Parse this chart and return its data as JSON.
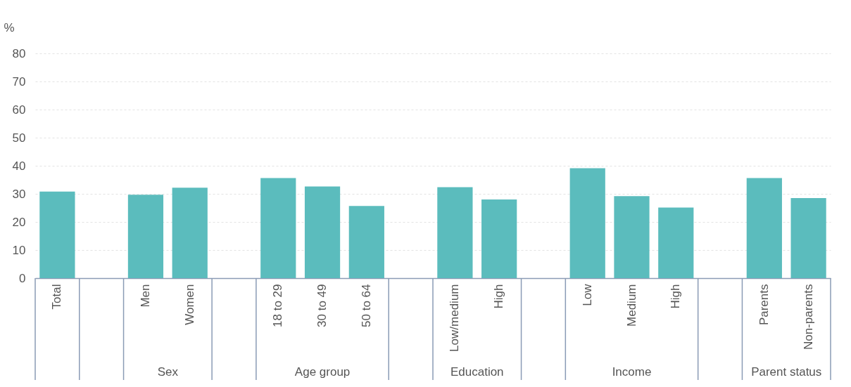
{
  "chart_data": {
    "type": "bar",
    "ylabel": "%",
    "categories": [
      "Total",
      null,
      "Men",
      "Women",
      null,
      "18 to 29",
      "30 to 49",
      "50 to 64",
      null,
      "Low/medium",
      "High",
      null,
      "Low",
      "Medium",
      "High",
      null,
      "Parents",
      "Non-parents"
    ],
    "values": [
      30.8,
      null,
      29.7,
      32.2,
      null,
      35.6,
      32.6,
      25.7,
      null,
      32.4,
      28.0,
      null,
      39.1,
      29.2,
      25.1,
      null,
      35.6,
      28.5
    ],
    "color": "#5bbcbd",
    "ylim": [
      0,
      80
    ],
    "yticks": [
      0,
      10,
      20,
      30,
      40,
      50,
      60,
      70,
      80
    ],
    "grid": "y",
    "annotations": [
      "Sex",
      "Age group",
      "Education",
      "Income",
      "Parent status"
    ]
  }
}
